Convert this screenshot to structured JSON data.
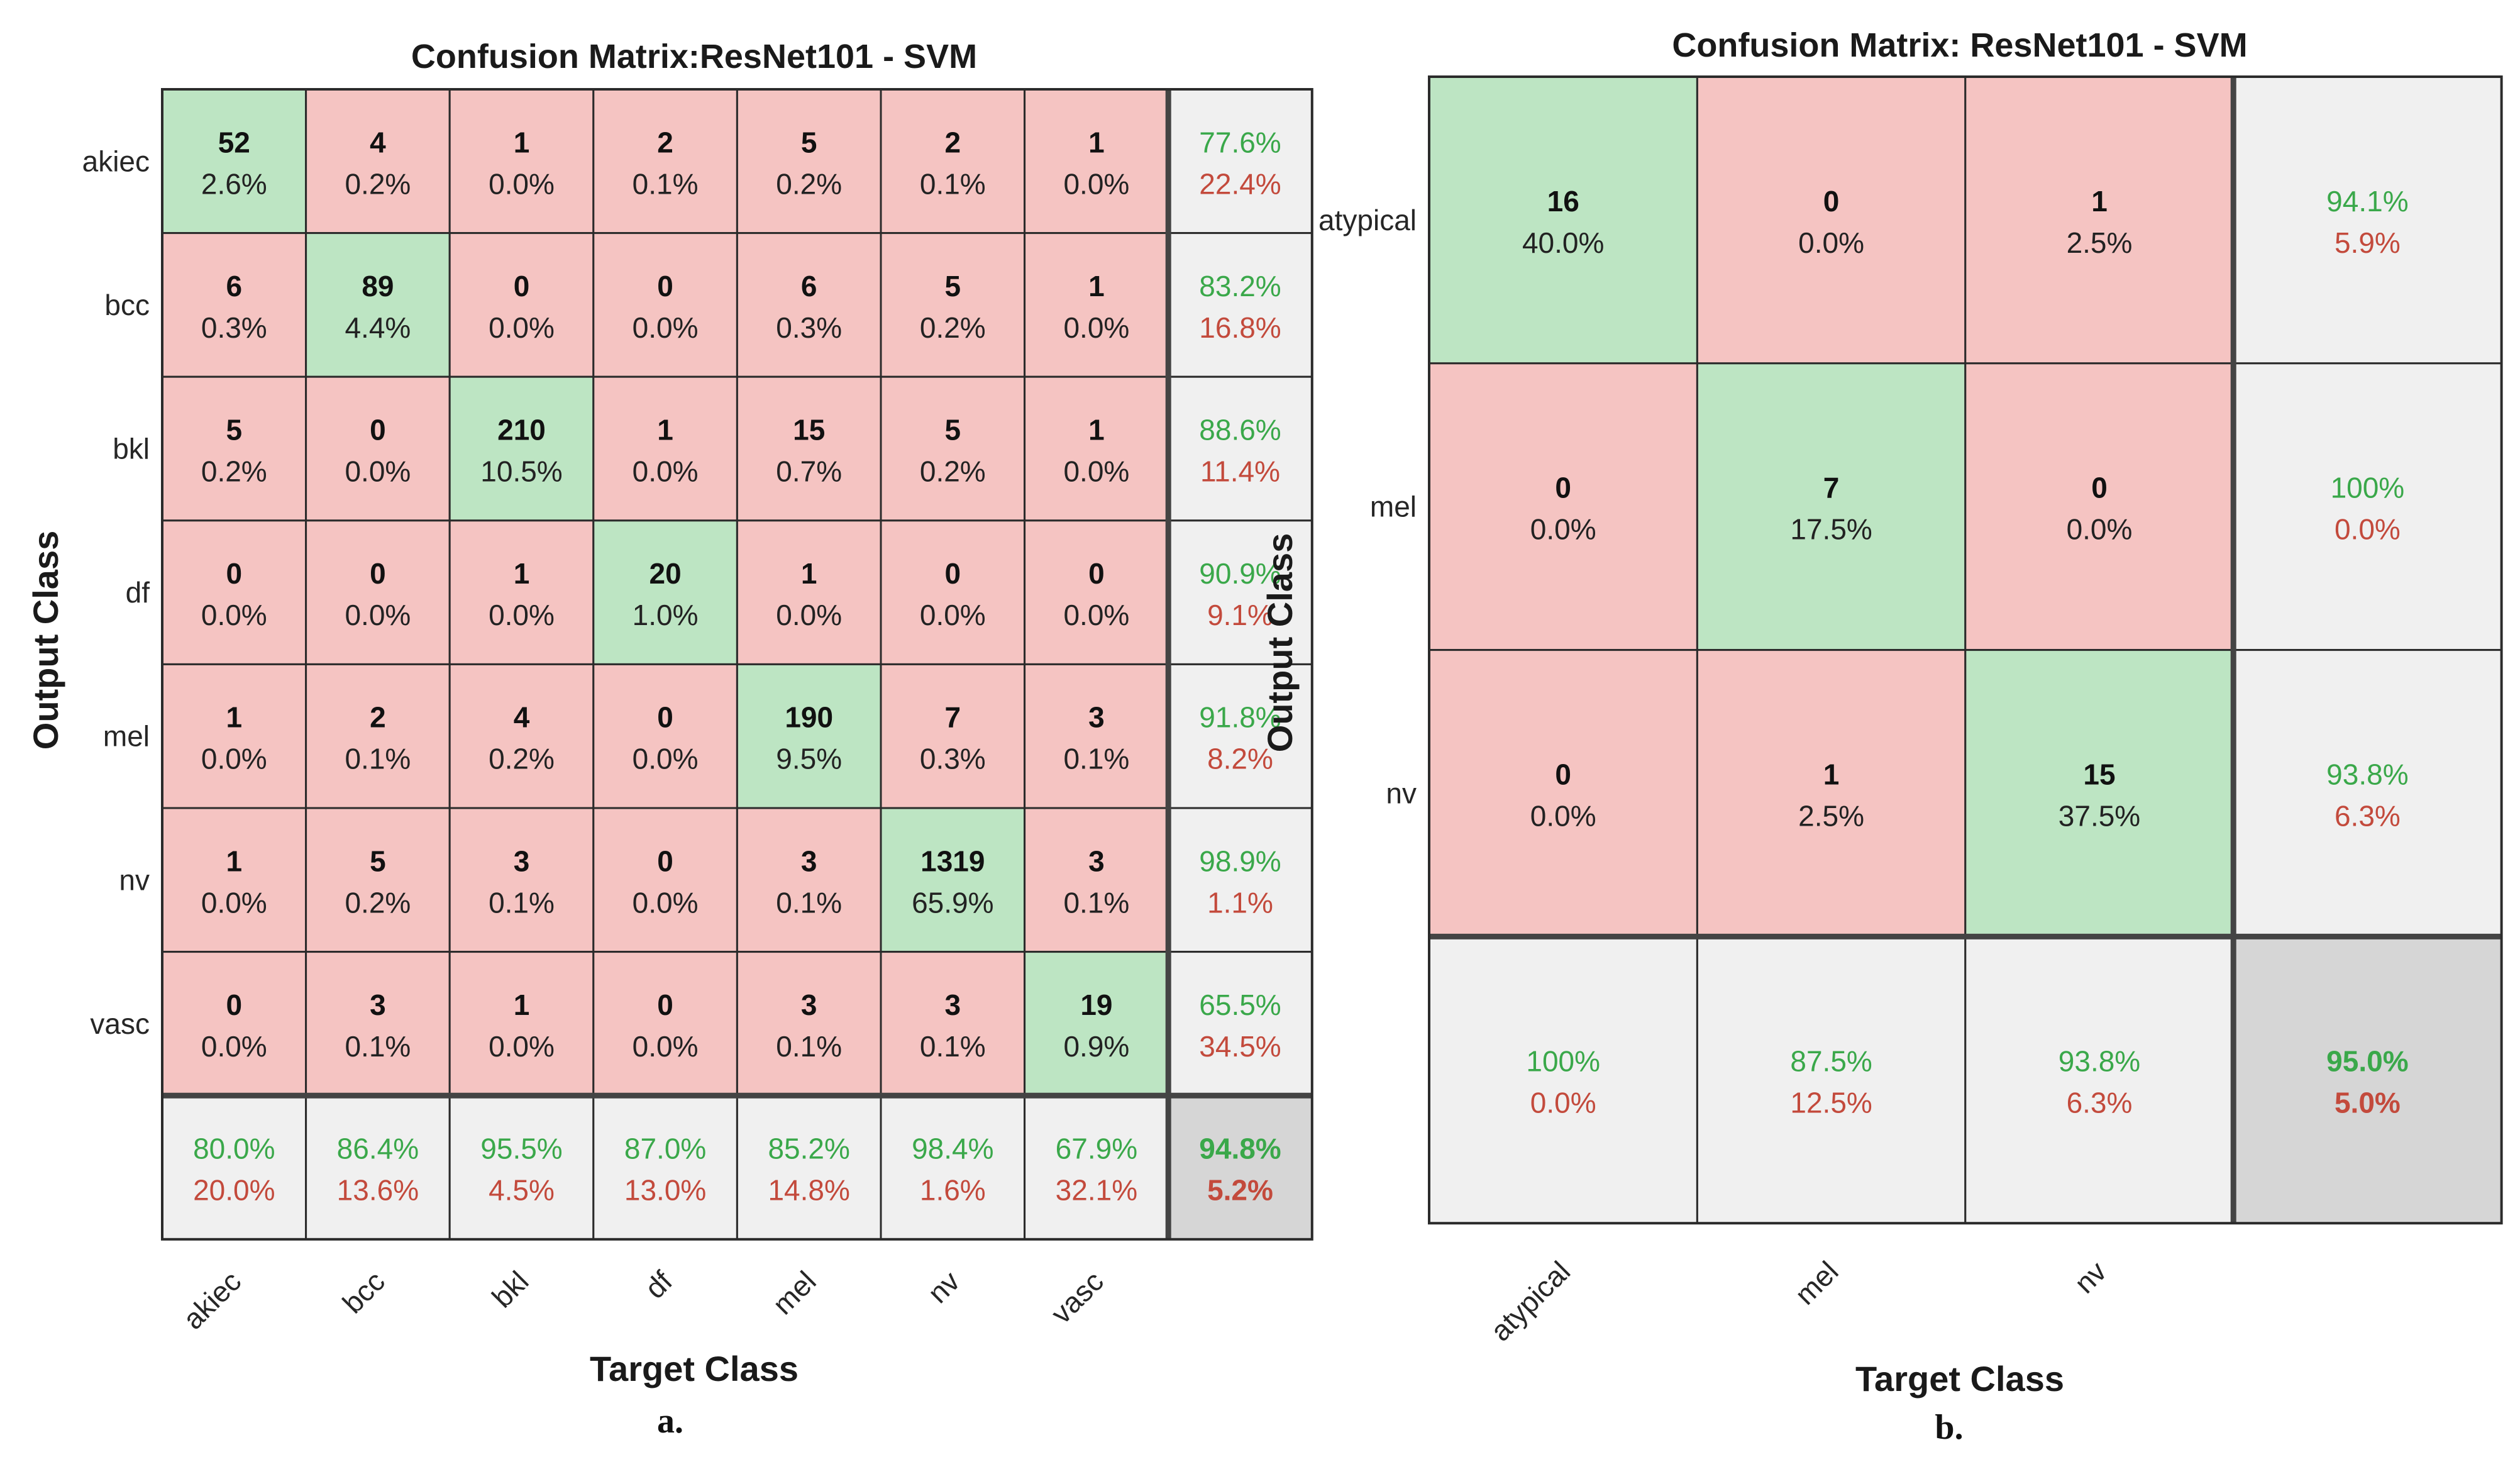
{
  "chart_data": [
    {
      "type": "heatmap",
      "title": "Confusion Matrix:ResNet101 - SVM",
      "xlabel": "Target Class",
      "ylabel": "Output Class",
      "caption": "a.",
      "classes": [
        "akiec",
        "bcc",
        "bkl",
        "df",
        "mel",
        "nv",
        "vasc"
      ],
      "counts": [
        [
          52,
          4,
          1,
          2,
          5,
          2,
          1
        ],
        [
          6,
          89,
          0,
          0,
          6,
          5,
          1
        ],
        [
          5,
          0,
          210,
          1,
          15,
          5,
          1
        ],
        [
          0,
          0,
          1,
          20,
          1,
          0,
          0
        ],
        [
          1,
          2,
          4,
          0,
          190,
          7,
          3
        ],
        [
          1,
          5,
          3,
          0,
          3,
          1319,
          3
        ],
        [
          0,
          3,
          1,
          0,
          3,
          3,
          19
        ]
      ],
      "percents": [
        [
          "2.6%",
          "0.2%",
          "0.0%",
          "0.1%",
          "0.2%",
          "0.1%",
          "0.0%"
        ],
        [
          "0.3%",
          "4.4%",
          "0.0%",
          "0.0%",
          "0.3%",
          "0.2%",
          "0.0%"
        ],
        [
          "0.2%",
          "0.0%",
          "10.5%",
          "0.0%",
          "0.7%",
          "0.2%",
          "0.0%"
        ],
        [
          "0.0%",
          "0.0%",
          "0.0%",
          "1.0%",
          "0.0%",
          "0.0%",
          "0.0%"
        ],
        [
          "0.0%",
          "0.1%",
          "0.2%",
          "0.0%",
          "9.5%",
          "0.3%",
          "0.1%"
        ],
        [
          "0.0%",
          "0.2%",
          "0.1%",
          "0.0%",
          "0.1%",
          "65.9%",
          "0.1%"
        ],
        [
          "0.0%",
          "0.1%",
          "0.0%",
          "0.0%",
          "0.1%",
          "0.1%",
          "0.9%"
        ]
      ],
      "row_summary": [
        [
          "77.6%",
          "22.4%"
        ],
        [
          "83.2%",
          "16.8%"
        ],
        [
          "88.6%",
          "11.4%"
        ],
        [
          "90.9%",
          "9.1%"
        ],
        [
          "91.8%",
          "8.2%"
        ],
        [
          "98.9%",
          "1.1%"
        ],
        [
          "65.5%",
          "34.5%"
        ]
      ],
      "col_summary": [
        [
          "80.0%",
          "20.0%"
        ],
        [
          "86.4%",
          "13.6%"
        ],
        [
          "95.5%",
          "4.5%"
        ],
        [
          "87.0%",
          "13.0%"
        ],
        [
          "85.2%",
          "14.8%"
        ],
        [
          "98.4%",
          "1.6%"
        ],
        [
          "67.9%",
          "32.1%"
        ]
      ],
      "overall": [
        "94.8%",
        "5.2%"
      ]
    },
    {
      "type": "heatmap",
      "title": "Confusion Matrix: ResNet101 - SVM",
      "xlabel": "Target Class",
      "ylabel": "Output Class",
      "caption": "b.",
      "classes": [
        "atypical",
        "mel",
        "nv"
      ],
      "counts": [
        [
          16,
          0,
          1
        ],
        [
          0,
          7,
          0
        ],
        [
          0,
          1,
          15
        ]
      ],
      "percents": [
        [
          "40.0%",
          "0.0%",
          "2.5%"
        ],
        [
          "0.0%",
          "17.5%",
          "0.0%"
        ],
        [
          "0.0%",
          "2.5%",
          "37.5%"
        ]
      ],
      "row_summary": [
        [
          "94.1%",
          "5.9%"
        ],
        [
          "100%",
          "0.0%"
        ],
        [
          "93.8%",
          "6.3%"
        ]
      ],
      "col_summary": [
        [
          "100%",
          "0.0%"
        ],
        [
          "87.5%",
          "12.5%"
        ],
        [
          "93.8%",
          "6.3%"
        ]
      ],
      "overall": [
        "95.0%",
        "5.0%"
      ]
    }
  ],
  "colors": {
    "correct": "#bde5c3",
    "wrong": "#f5c4c2",
    "summary": "#f0f0f0",
    "overall": "#d6d6d6",
    "green_text": "#3aa84a",
    "red_text": "#c34a3c",
    "grid": "#2b2b2b"
  }
}
